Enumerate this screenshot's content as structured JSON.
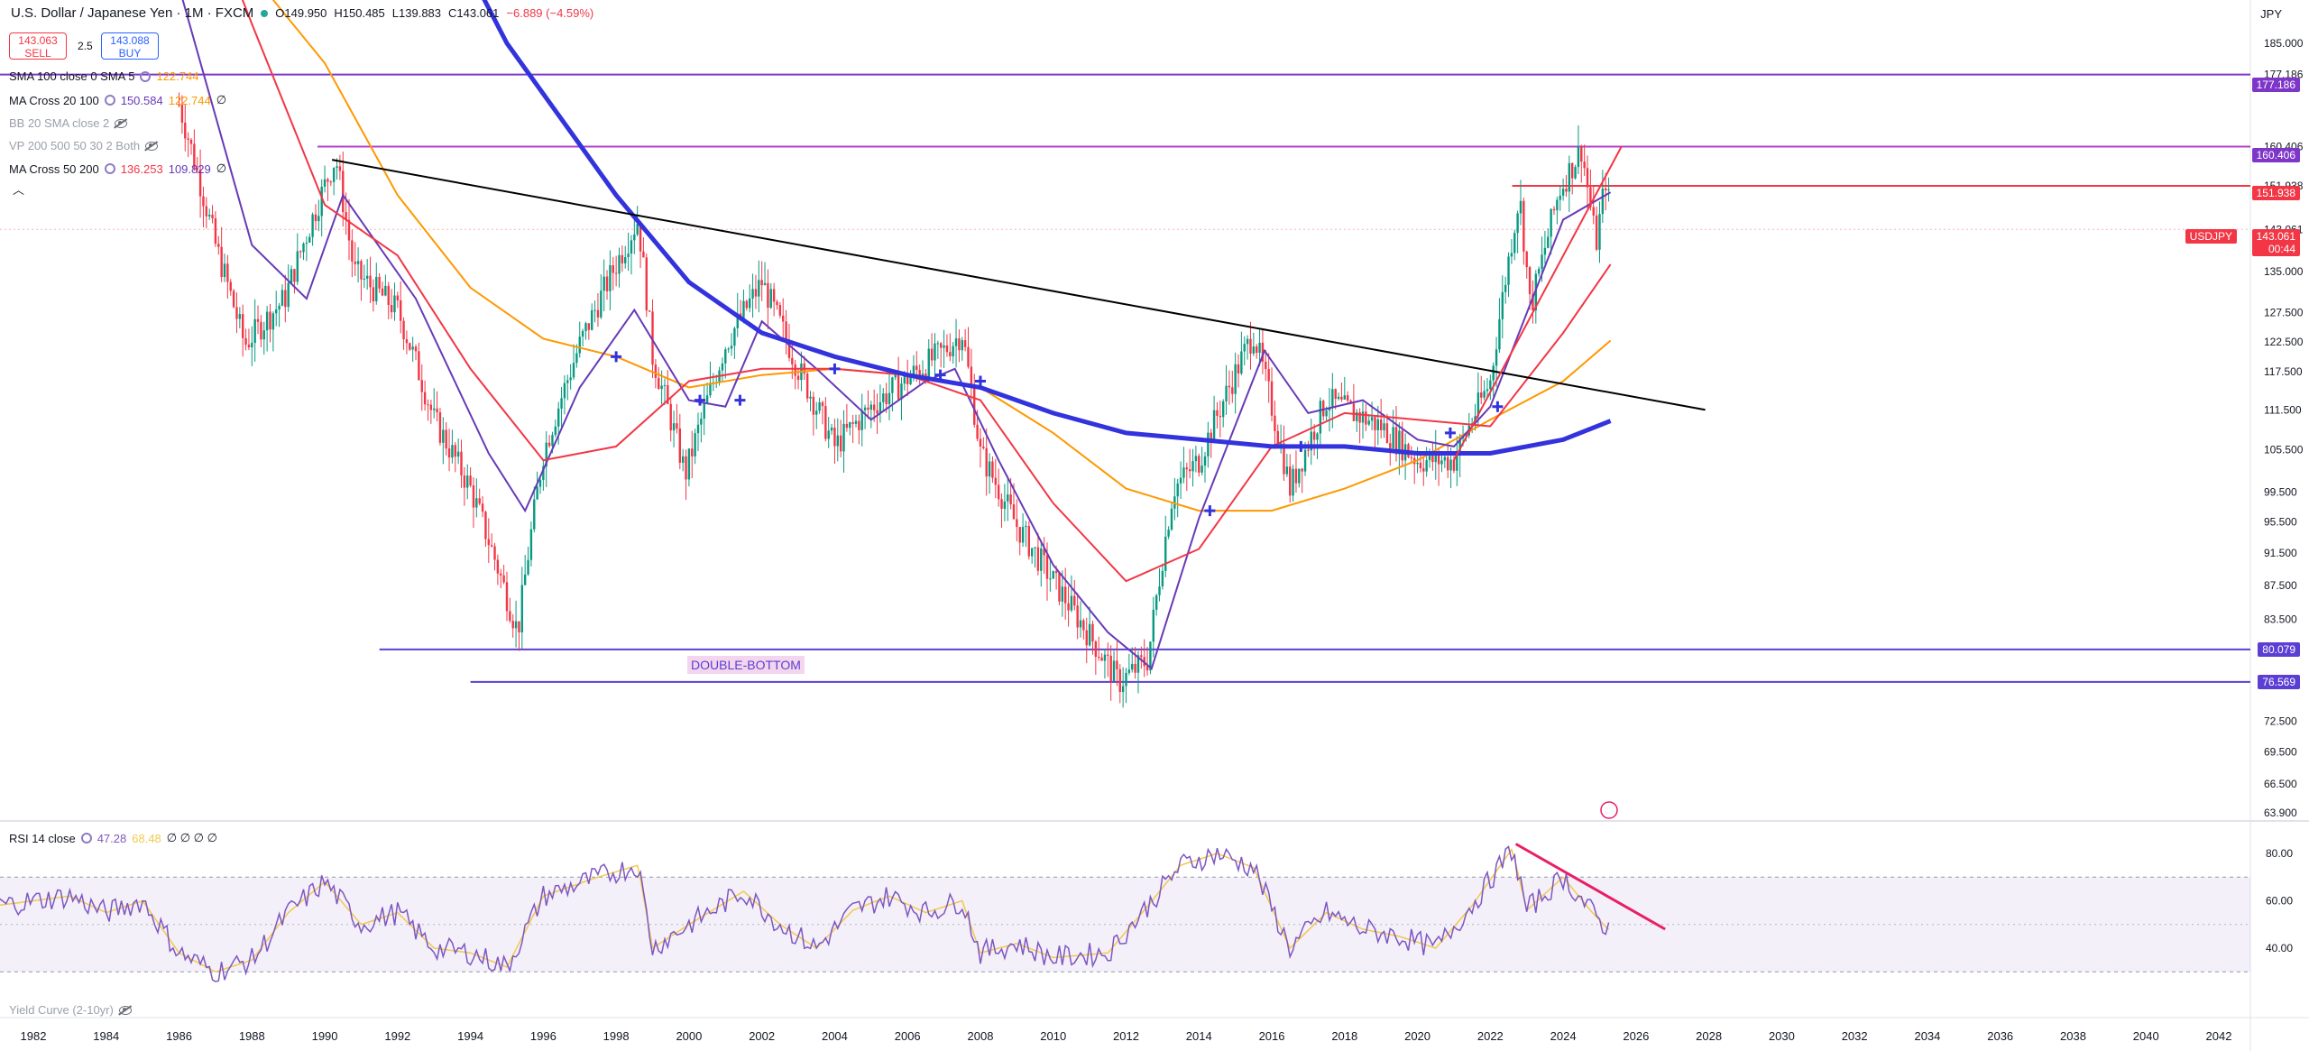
{
  "header": {
    "symbol_title": "U.S. Dollar / Japanese Yen · 1M · FXCM",
    "ohlc": {
      "o": "O149.950",
      "h": "H150.485",
      "l": "L139.883",
      "c": "C143.061",
      "chg": "−6.889 (−4.59%)"
    },
    "sell_price": "143.063",
    "sell_label": "SELL",
    "buy_price": "143.088",
    "buy_label": "BUY",
    "spread": "2.5",
    "currency": "JPY"
  },
  "indicators": [
    {
      "label": "SMA 100 close 0 SMA 5",
      "values": [
        "122.744"
      ],
      "colors": [
        "#ff9800"
      ],
      "hidden": false
    },
    {
      "label": "MA Cross 20 100",
      "values": [
        "150.584",
        "122.744"
      ],
      "colors": [
        "#673ab7",
        "#ff9800"
      ],
      "extra": "∅",
      "hidden": false
    },
    {
      "label": "BB 20 SMA close 2",
      "values": [],
      "colors": [],
      "hidden": true
    },
    {
      "label": "VP 200 500 50 30 2 Both",
      "values": [],
      "colors": [],
      "hidden": true
    },
    {
      "label": "MA Cross 50 200",
      "values": [
        "136.253",
        "109.829"
      ],
      "colors": [
        "#f23645",
        "#673ab7"
      ],
      "extra": "∅",
      "hidden": false
    }
  ],
  "rsi": {
    "label": "RSI 14 close",
    "value": "47.28",
    "ma_value": "68.48",
    "extra": "∅ ∅ ∅ ∅"
  },
  "yield_pane": {
    "label": "Yield Curve (2-10yr)"
  },
  "annotation": "DOUBLE-BOTTOM",
  "price_tags": [
    {
      "value": "177.186",
      "color": "#7e36c9"
    },
    {
      "value": "160.406",
      "color": "#7e36c9"
    },
    {
      "value": "151.938",
      "color": "#f23645"
    },
    {
      "symbol": "USDJPY",
      "value": "143.061",
      "timer": "00:44",
      "color": "#f23645"
    },
    {
      "value": "80.079",
      "color": "#5b3fd3"
    },
    {
      "value": "76.569",
      "color": "#5b3fd3"
    }
  ],
  "chart_data": {
    "type": "candlestick",
    "symbol": "USDJPY",
    "interval": "1M",
    "y_scale": "log",
    "y_ticks": [
      185.0,
      177.186,
      160.406,
      151.938,
      143.061,
      135.0,
      127.5,
      122.5,
      117.5,
      111.5,
      105.5,
      99.5,
      95.5,
      91.5,
      87.5,
      83.5,
      80.079,
      76.569,
      72.5,
      69.5,
      66.5,
      63.9
    ],
    "x_ticks": [
      "1982",
      "1984",
      "1986",
      "1988",
      "1990",
      "1992",
      "1994",
      "1996",
      "1998",
      "2000",
      "2002",
      "2004",
      "2006",
      "2008",
      "2010",
      "2012",
      "2014",
      "2016",
      "2018",
      "2020",
      "2022",
      "2024",
      "2026",
      "2028",
      "2030",
      "2032",
      "2034",
      "2036",
      "2038",
      "2040",
      "2042"
    ],
    "price_path": [
      [
        1986.0,
        170
      ],
      [
        1987.0,
        140
      ],
      [
        1987.8,
        122
      ],
      [
        1988.9,
        130
      ],
      [
        1990.3,
        158
      ],
      [
        1990.8,
        135
      ],
      [
        1992.0,
        128
      ],
      [
        1993.0,
        110
      ],
      [
        1994.0,
        100
      ],
      [
        1995.3,
        82
      ],
      [
        1996.0,
        105
      ],
      [
        1997.0,
        122
      ],
      [
        1998.6,
        145
      ],
      [
        1999.0,
        120
      ],
      [
        1999.9,
        102
      ],
      [
        2001.0,
        122
      ],
      [
        2002.0,
        133
      ],
      [
        2003.0,
        118
      ],
      [
        2004.0,
        106
      ],
      [
        2005.0,
        112
      ],
      [
        2007.0,
        121
      ],
      [
        2007.5,
        124
      ],
      [
        2008.0,
        105
      ],
      [
        2009.0,
        95
      ],
      [
        2010.0,
        88
      ],
      [
        2011.8,
        76.5
      ],
      [
        2012.6,
        79
      ],
      [
        2013.3,
        100
      ],
      [
        2014.0,
        104
      ],
      [
        2015.5,
        124
      ],
      [
        2016.5,
        100
      ],
      [
        2017.5,
        113
      ],
      [
        2019.0,
        109
      ],
      [
        2020.0,
        104
      ],
      [
        2021.0,
        104
      ],
      [
        2022.0,
        116
      ],
      [
        2022.8,
        150
      ],
      [
        2023.1,
        128
      ],
      [
        2023.9,
        151
      ],
      [
        2024.5,
        160
      ],
      [
        2024.9,
        140
      ],
      [
        2025.2,
        155
      ],
      [
        2025.3,
        143
      ]
    ],
    "moving_averages": [
      {
        "name": "SMA 100",
        "color": "#ff9800",
        "points": [
          [
            1987.5,
            210
          ],
          [
            1990.0,
            180
          ],
          [
            1992.0,
            150
          ],
          [
            1994.0,
            132
          ],
          [
            1996.0,
            123
          ],
          [
            1998.0,
            120
          ],
          [
            2000.0,
            115
          ],
          [
            2002.0,
            117
          ],
          [
            2004.0,
            118
          ],
          [
            2006.0,
            117
          ],
          [
            2008.0,
            115
          ],
          [
            2010.0,
            108
          ],
          [
            2012.0,
            100
          ],
          [
            2014.0,
            97
          ],
          [
            2016.0,
            97
          ],
          [
            2018.0,
            100
          ],
          [
            2020.0,
            104
          ],
          [
            2022.0,
            110
          ],
          [
            2024.0,
            116
          ],
          [
            2025.3,
            122.7
          ]
        ]
      },
      {
        "name": "MA 20",
        "color": "#673ab7",
        "points": [
          [
            1986.0,
            200
          ],
          [
            1988.0,
            140
          ],
          [
            1989.5,
            130
          ],
          [
            1990.5,
            150
          ],
          [
            1992.5,
            130
          ],
          [
            1994.5,
            105
          ],
          [
            1995.5,
            97
          ],
          [
            1997.0,
            115
          ],
          [
            1998.5,
            128
          ],
          [
            2000.0,
            113
          ],
          [
            2001.0,
            112
          ],
          [
            2002.0,
            126
          ],
          [
            2003.5,
            118
          ],
          [
            2005.0,
            110
          ],
          [
            2006.5,
            116
          ],
          [
            2007.3,
            118
          ],
          [
            2008.5,
            104
          ],
          [
            2010.0,
            90
          ],
          [
            2011.5,
            82
          ],
          [
            2012.7,
            78
          ],
          [
            2014.0,
            96
          ],
          [
            2015.8,
            121
          ],
          [
            2017.0,
            111
          ],
          [
            2018.5,
            113
          ],
          [
            2020.0,
            107
          ],
          [
            2021.0,
            106
          ],
          [
            2022.0,
            112
          ],
          [
            2024.0,
            145
          ],
          [
            2025.3,
            150.6
          ]
        ]
      },
      {
        "name": "MA 50",
        "color": "#f23645",
        "points": [
          [
            1986.2,
            240
          ],
          [
            1988.0,
            190
          ],
          [
            1990.0,
            148
          ],
          [
            1992.0,
            138
          ],
          [
            1994.0,
            118
          ],
          [
            1996.0,
            104
          ],
          [
            1998.0,
            106
          ],
          [
            2000.0,
            116
          ],
          [
            2002.0,
            118
          ],
          [
            2004.0,
            118
          ],
          [
            2006.0,
            117
          ],
          [
            2008.0,
            113
          ],
          [
            2010.0,
            98
          ],
          [
            2012.0,
            88
          ],
          [
            2014.0,
            92
          ],
          [
            2016.0,
            106
          ],
          [
            2018.0,
            111
          ],
          [
            2020.0,
            110
          ],
          [
            2022.0,
            109
          ],
          [
            2024.0,
            124
          ],
          [
            2025.3,
            136.3
          ]
        ]
      },
      {
        "name": "MA 200",
        "color": "#3333dd",
        "points": [
          [
            1991.5,
            260
          ],
          [
            1995.0,
            185
          ],
          [
            1998.0,
            150
          ],
          [
            2000.0,
            133
          ],
          [
            2002.0,
            124
          ],
          [
            2004.0,
            120
          ],
          [
            2006.0,
            117
          ],
          [
            2008.0,
            115
          ],
          [
            2010.0,
            111
          ],
          [
            2012.0,
            108
          ],
          [
            2014.0,
            107
          ],
          [
            2016.0,
            106
          ],
          [
            2018.0,
            106
          ],
          [
            2020.0,
            105
          ],
          [
            2022.0,
            105
          ],
          [
            2024.0,
            107
          ],
          [
            2025.3,
            109.8
          ]
        ]
      }
    ],
    "trendlines": [
      {
        "color": "#000000",
        "from": [
          1990.2,
          157.5
        ],
        "to": [
          2027.9,
          111.5
        ]
      },
      {
        "color": "#f23645",
        "from": [
          2021.0,
          104
        ],
        "to": [
          2025.6,
          160.4
        ]
      }
    ],
    "rsi_ticks": [
      80,
      60,
      40
    ],
    "rsi_band": [
      70,
      30
    ],
    "rsi_path": [
      [
        1981.0,
        58
      ],
      [
        1983.0,
        62
      ],
      [
        1984.0,
        55
      ],
      [
        1985.0,
        60
      ],
      [
        1986.0,
        38
      ],
      [
        1987.0,
        30
      ],
      [
        1988.0,
        35
      ],
      [
        1989.0,
        55
      ],
      [
        1990.0,
        68
      ],
      [
        1991.0,
        50
      ],
      [
        1992.0,
        55
      ],
      [
        1993.0,
        40
      ],
      [
        1994.0,
        38
      ],
      [
        1995.0,
        32
      ],
      [
        1996.0,
        62
      ],
      [
        1997.5,
        70
      ],
      [
        1998.6,
        75
      ],
      [
        1999.0,
        40
      ],
      [
        2000.0,
        50
      ],
      [
        2001.5,
        64
      ],
      [
        2002.5,
        50
      ],
      [
        2003.5,
        40
      ],
      [
        2004.5,
        56
      ],
      [
        2005.5,
        62
      ],
      [
        2006.5,
        55
      ],
      [
        2007.5,
        60
      ],
      [
        2008.0,
        38
      ],
      [
        2009.0,
        42
      ],
      [
        2010.0,
        36
      ],
      [
        2011.5,
        38
      ],
      [
        2012.5,
        56
      ],
      [
        2013.5,
        75
      ],
      [
        2014.5,
        80
      ],
      [
        2015.5,
        74
      ],
      [
        2016.5,
        40
      ],
      [
        2017.5,
        55
      ],
      [
        2018.5,
        48
      ],
      [
        2019.5,
        45
      ],
      [
        2020.5,
        40
      ],
      [
        2021.5,
        58
      ],
      [
        2022.6,
        82
      ],
      [
        2023.0,
        56
      ],
      [
        2024.0,
        70
      ],
      [
        2024.8,
        55
      ],
      [
        2025.3,
        47
      ]
    ],
    "rsi_divergence": {
      "color": "#e91e63",
      "from": [
        2022.7,
        84
      ],
      "to": [
        2026.8,
        48
      ]
    }
  }
}
